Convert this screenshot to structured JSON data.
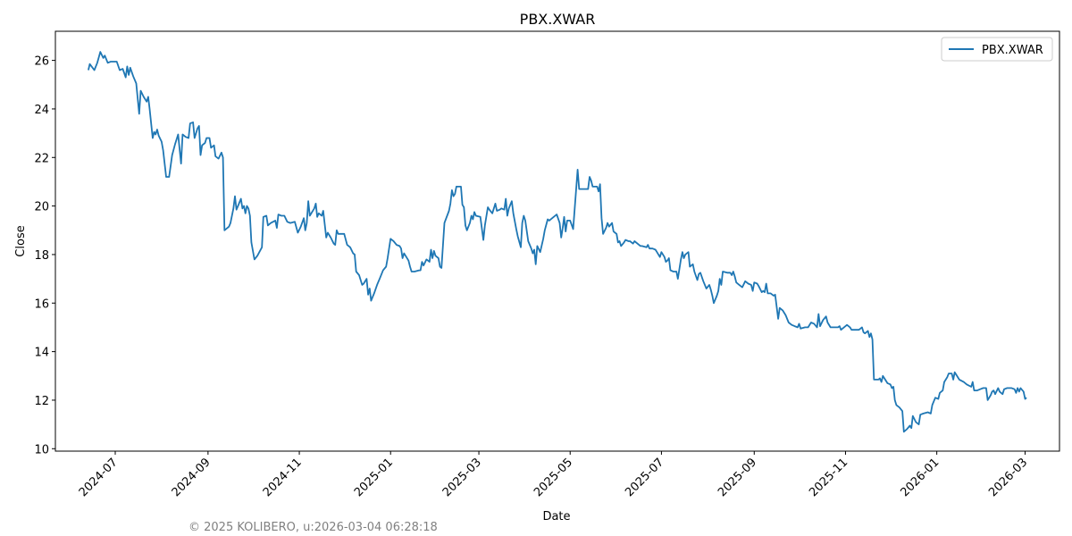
{
  "chart_data": {
    "type": "line",
    "title": "PBX.XWAR",
    "xlabel": "Date",
    "ylabel": "Close",
    "ylim": [
      9.9,
      27.2
    ],
    "xlim": [
      "2024-05-22",
      "2026-03-24"
    ],
    "grid": false,
    "legend": {
      "entries": [
        "PBX.XWAR"
      ],
      "placement": "top-right"
    },
    "x_ticks": [
      "2024-07",
      "2024-09",
      "2024-11",
      "2025-01",
      "2025-03",
      "2025-05",
      "2025-07",
      "2025-09",
      "2025-11",
      "2026-01",
      "2026-03"
    ],
    "y_ticks": [
      10,
      12,
      14,
      16,
      18,
      20,
      22,
      24,
      26
    ],
    "x_origin": "2024-07-01",
    "x_unit": "days since x_origin",
    "series": [
      {
        "name": "PBX.XWAR",
        "color": "#1f77b4",
        "x_days": [
          -18,
          -17,
          -14,
          -12,
          -10,
          -8,
          -7,
          -5,
          -3,
          1,
          3,
          5,
          7,
          8,
          9,
          10,
          12,
          14,
          16,
          17,
          19,
          21,
          22,
          23,
          25,
          26,
          27,
          28,
          29,
          31,
          32,
          34,
          36,
          38,
          40,
          42,
          44,
          45,
          47,
          49,
          50,
          52,
          53,
          55,
          56,
          57,
          58,
          60,
          61,
          63,
          64,
          66,
          67,
          69,
          71,
          72,
          73,
          76,
          77,
          79,
          80,
          81,
          82,
          84,
          85,
          86,
          87,
          88,
          89,
          90,
          91,
          93,
          95,
          98,
          99,
          101,
          102,
          104,
          107,
          108,
          109,
          111,
          113,
          115,
          117,
          120,
          122,
          124,
          126,
          127,
          128,
          129,
          130,
          133,
          134,
          135,
          136,
          138,
          139,
          141,
          142,
          144,
          146,
          147,
          148,
          149,
          153,
          155,
          157,
          159,
          160,
          161,
          163,
          165,
          166,
          168,
          169,
          170,
          171,
          173,
          175,
          177,
          179,
          181,
          182,
          184,
          186,
          188,
          190,
          191,
          192,
          193,
          194,
          196,
          197,
          198,
          200,
          203,
          204,
          205,
          206,
          208,
          209,
          210,
          211,
          212,
          213,
          214,
          216,
          217,
          218,
          220,
          223,
          224,
          225,
          226,
          227,
          228,
          231,
          232,
          233,
          234,
          235,
          237,
          238,
          239,
          240,
          241,
          244,
          246,
          247,
          249,
          250,
          252,
          254,
          255,
          257,
          258,
          260,
          261,
          262,
          263,
          265,
          266,
          268,
          269,
          271,
          272,
          273,
          274,
          276,
          278,
          279,
          280,
          281,
          282,
          284,
          286,
          287,
          289,
          290,
          293,
          295,
          297,
          298,
          299,
          300,
          301,
          302,
          304,
          306,
          309,
          310,
          316,
          317,
          318,
          319,
          322,
          323,
          324,
          325,
          326,
          328,
          329,
          330,
          332,
          333,
          334,
          335,
          336,
          337,
          338,
          340,
          341,
          343,
          344,
          346,
          347,
          351,
          352,
          355,
          356,
          357,
          359,
          361,
          362,
          364,
          365,
          367,
          368,
          369,
          370,
          371,
          373,
          375,
          376,
          378,
          379,
          380,
          381,
          383,
          384,
          386,
          387,
          389,
          390,
          391,
          393,
          395,
          397,
          398,
          399,
          400,
          402,
          403,
          404,
          405,
          406,
          409,
          411,
          412,
          413,
          414,
          415,
          417,
          419,
          421,
          423,
          425,
          426,
          427,
          429,
          430,
          432,
          433,
          434,
          435,
          436,
          438,
          440,
          441,
          443,
          444,
          446,
          448,
          450,
          452,
          454,
          456,
          457,
          458,
          461,
          463,
          465,
          467,
          469,
          470,
          471,
          473,
          475,
          476,
          478,
          480,
          483,
          484,
          485,
          487,
          489,
          491,
          492,
          495,
          497,
          499,
          500,
          501,
          503,
          504,
          505,
          506,
          507,
          510,
          511,
          512,
          513,
          514,
          516,
          518,
          519,
          520,
          521,
          522,
          524,
          526,
          527,
          529,
          531,
          532,
          533,
          535,
          537,
          538,
          540,
          543,
          545,
          546,
          548,
          550,
          551,
          553,
          554,
          556,
          557,
          559,
          560,
          561,
          562,
          564,
          567,
          569,
          572,
          573,
          574,
          576,
          578,
          580,
          582,
          583,
          585,
          586,
          587,
          588,
          590,
          591,
          593,
          594,
          596,
          599,
          601,
          602,
          603,
          604,
          605,
          607,
          608,
          609
        ],
        "values": [
          25.6,
          25.85,
          25.6,
          25.9,
          26.35,
          26.1,
          26.2,
          25.9,
          25.95,
          25.95,
          25.6,
          25.65,
          25.3,
          25.75,
          25.4,
          25.7,
          25.35,
          25.05,
          23.8,
          24.75,
          24.5,
          24.3,
          24.5,
          24.0,
          22.8,
          23.05,
          22.95,
          23.15,
          22.9,
          22.65,
          22.3,
          21.2,
          21.2,
          22.1,
          22.55,
          22.95,
          21.75,
          22.95,
          22.85,
          22.8,
          23.4,
          23.45,
          22.8,
          23.2,
          23.3,
          22.1,
          22.5,
          22.6,
          22.8,
          22.8,
          22.4,
          22.5,
          22.05,
          21.95,
          22.2,
          22.0,
          19.0,
          19.15,
          19.3,
          19.9,
          20.4,
          19.85,
          20.0,
          20.3,
          19.9,
          20.0,
          19.7,
          20.0,
          19.9,
          19.6,
          18.5,
          17.8,
          17.95,
          18.3,
          19.55,
          19.6,
          19.2,
          19.3,
          19.4,
          19.1,
          19.65,
          19.6,
          19.6,
          19.35,
          19.3,
          19.35,
          18.9,
          19.15,
          19.5,
          19.0,
          19.3,
          20.2,
          19.6,
          19.9,
          20.1,
          19.55,
          19.7,
          19.6,
          19.8,
          18.7,
          18.9,
          18.7,
          18.45,
          18.4,
          19.0,
          18.85,
          18.85,
          18.4,
          18.3,
          18.05,
          18.0,
          17.3,
          17.15,
          16.75,
          16.8,
          17.0,
          16.35,
          16.6,
          16.1,
          16.4,
          16.75,
          17.05,
          17.35,
          17.5,
          17.85,
          18.65,
          18.55,
          18.4,
          18.35,
          18.25,
          17.85,
          18.05,
          17.95,
          17.75,
          17.5,
          17.3,
          17.3,
          17.35,
          17.35,
          17.7,
          17.55,
          17.8,
          17.75,
          17.7,
          18.2,
          17.85,
          18.15,
          17.95,
          17.85,
          17.5,
          17.45,
          19.3,
          19.8,
          20.1,
          20.65,
          20.4,
          20.5,
          20.8,
          20.8,
          20.05,
          19.95,
          19.2,
          19.0,
          19.3,
          19.6,
          19.45,
          19.75,
          19.6,
          19.55,
          18.6,
          19.2,
          19.95,
          19.85,
          19.7,
          20.1,
          19.8,
          19.85,
          19.9,
          19.85,
          20.3,
          19.6,
          19.9,
          20.2,
          19.7,
          19.05,
          18.75,
          18.3,
          19.3,
          19.6,
          19.4,
          18.55,
          18.25,
          18.05,
          18.2,
          17.6,
          18.35,
          18.1,
          18.65,
          19.0,
          19.45,
          19.4,
          19.55,
          19.65,
          19.3,
          18.7,
          19.1,
          19.55,
          18.95,
          19.4,
          19.4,
          19.05,
          21.5,
          20.7,
          20.7,
          21.2,
          21.05,
          20.8,
          20.8,
          20.6,
          20.9,
          19.5,
          18.85,
          19.1,
          19.3,
          19.15,
          19.3,
          18.95,
          18.9,
          18.85,
          18.5,
          18.55,
          18.35,
          18.5,
          18.6,
          18.55,
          18.55,
          18.45,
          18.55,
          18.35,
          18.35,
          18.3,
          18.4,
          18.25,
          18.25,
          18.2,
          18.1,
          17.9,
          18.1,
          17.9,
          17.7,
          17.75,
          17.85,
          17.35,
          17.3,
          17.3,
          17.0,
          17.8,
          18.1,
          17.85,
          18.0,
          18.1,
          17.5,
          17.6,
          17.3,
          16.95,
          17.2,
          17.25,
          16.9,
          16.6,
          16.75,
          16.55,
          16.3,
          16.0,
          16.3,
          16.5,
          17.0,
          16.75,
          17.3,
          17.25,
          17.25,
          17.15,
          17.3,
          17.1,
          16.85,
          16.75,
          16.65,
          16.9,
          16.8,
          16.75,
          16.5,
          16.85,
          16.8,
          16.7,
          16.45,
          16.5,
          16.45,
          16.8,
          16.4,
          16.4,
          16.3,
          16.35,
          15.35,
          15.8,
          15.7,
          15.5,
          15.2,
          15.1,
          15.05,
          15.0,
          15.15,
          14.95,
          15.0,
          15.0,
          15.2,
          15.15,
          15.0,
          15.55,
          15.05,
          15.3,
          15.45,
          15.2,
          15.0,
          15.0,
          15.0,
          15.05,
          14.9,
          15.0,
          15.1,
          15.0,
          14.9,
          14.9,
          14.9,
          15.0,
          14.8,
          14.75,
          14.85,
          14.6,
          14.75,
          14.5,
          12.85,
          12.85,
          12.9,
          12.75,
          13.0,
          12.9,
          12.7,
          12.65,
          12.5,
          12.55,
          12.0,
          11.8,
          11.7,
          11.55,
          10.7,
          10.8,
          10.95,
          10.85,
          11.35,
          11.1,
          11.0,
          11.4,
          11.45,
          11.5,
          11.45,
          11.8,
          12.1,
          12.05,
          12.3,
          12.4,
          12.75,
          12.95,
          13.1,
          13.1,
          12.85,
          13.15,
          13.05,
          12.85,
          12.75,
          12.65,
          12.55,
          12.75,
          12.4,
          12.4,
          12.45,
          12.5,
          12.5,
          12.0,
          12.2,
          12.35,
          12.4,
          12.25,
          12.5,
          12.35,
          12.25,
          12.45,
          12.5,
          12.5,
          12.45,
          12.3,
          12.5,
          12.35,
          12.5,
          12.35,
          12.05,
          12.1
        ]
      }
    ]
  },
  "footer": "© 2025 KOLIBERO, u:2026-03-04 06:28:18"
}
